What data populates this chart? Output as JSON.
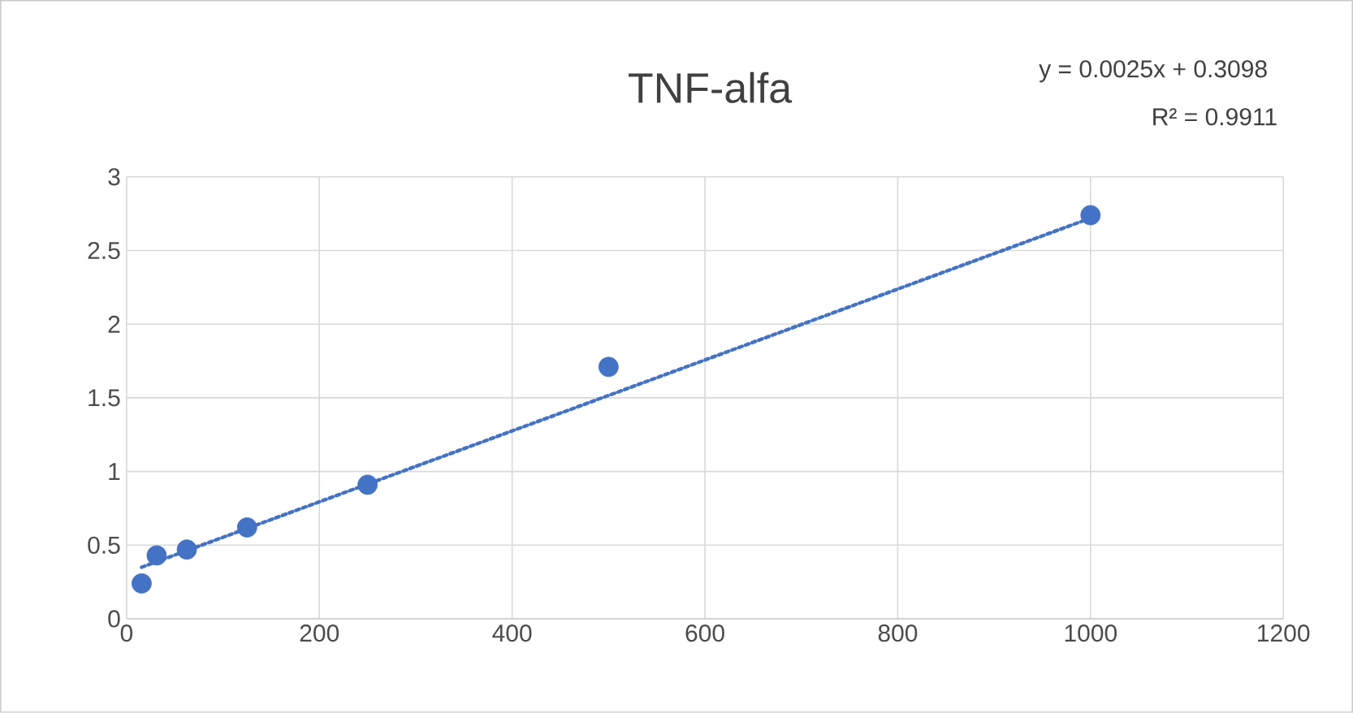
{
  "chart_data": {
    "type": "scatter",
    "title": "TNF-alfa",
    "annotations": [
      "y = 0.0025x + 0.3098",
      "R² = 0.9911"
    ],
    "series": [
      {
        "type": "scatter",
        "color": "#4472c4",
        "marker": "circle",
        "x": [
          15.625,
          31.25,
          62.5,
          125,
          250,
          500,
          1000
        ],
        "values": [
          0.24,
          0.43,
          0.47,
          0.62,
          0.91,
          1.71,
          2.74
        ]
      },
      {
        "type": "line",
        "color": "#4472c4",
        "line_style": "dotted",
        "marker": "none",
        "x": [
          15.625,
          1000
        ],
        "values": [
          0.35,
          2.72
        ]
      }
    ],
    "xlim": [
      0,
      1200
    ],
    "xticks": [
      0,
      200,
      400,
      600,
      800,
      1000,
      1200
    ],
    "ylim": [
      0,
      3
    ],
    "yticks": [
      0,
      0.5,
      1,
      1.5,
      2,
      2.5,
      3
    ],
    "grid": true
  }
}
